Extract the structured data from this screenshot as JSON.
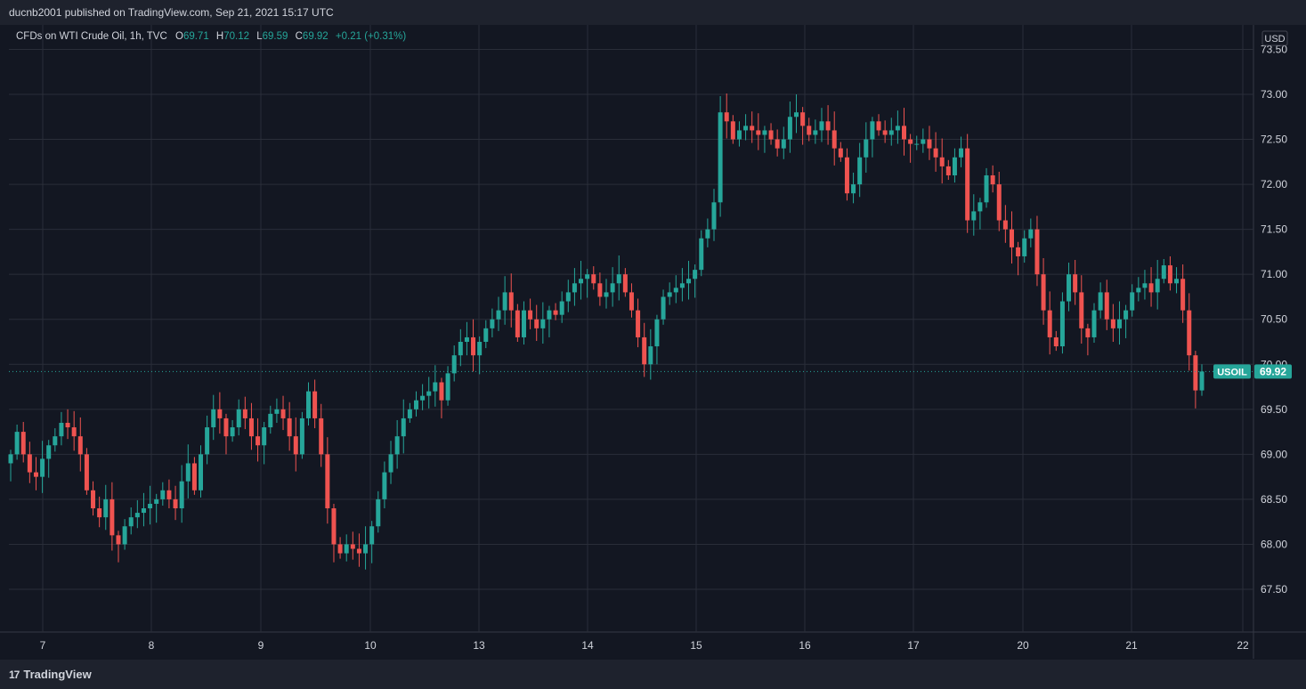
{
  "header": {
    "published": "ducnb2001 published on TradingView.com, Sep 21, 2021 15:17 UTC"
  },
  "legend": {
    "symbol": "CFDs on WTI Crude Oil, 1h, TVC",
    "o_label": "O",
    "o": "69.71",
    "h_label": "H",
    "h": "70.12",
    "l_label": "L",
    "l": "69.59",
    "c_label": "C",
    "c": "69.92",
    "change": "+0.21 (+0.31%)"
  },
  "footer": {
    "brand": "TradingView",
    "logo_glyph": "17"
  },
  "colors": {
    "background": "#131722",
    "panel": "#1e222d",
    "grid": "#2a2e39",
    "up": "#26a69a",
    "down": "#ef5350",
    "text": "#d1d4dc"
  },
  "chart_data": {
    "type": "candlestick",
    "currency": "USD",
    "ylim": [
      67.2,
      73.6
    ],
    "y_ticks": [
      "67.50",
      "68.00",
      "68.50",
      "69.00",
      "69.50",
      "70.00",
      "70.50",
      "71.00",
      "71.50",
      "72.00",
      "72.50",
      "73.00",
      "73.50"
    ],
    "x_ticks": [
      "7",
      "8",
      "9",
      "10",
      "13",
      "14",
      "15",
      "16",
      "17",
      "20",
      "21",
      "22"
    ],
    "last_price": {
      "symbol": "USOIL",
      "value": "69.92"
    },
    "closes": [
      69.0,
      69.25,
      69.0,
      68.8,
      68.75,
      68.95,
      69.1,
      69.2,
      69.35,
      69.3,
      69.2,
      69.0,
      68.6,
      68.4,
      68.3,
      68.5,
      68.1,
      68.0,
      68.2,
      68.3,
      68.35,
      68.4,
      68.45,
      68.5,
      68.6,
      68.5,
      68.4,
      68.7,
      68.9,
      68.6,
      69.0,
      69.3,
      69.5,
      69.4,
      69.2,
      69.3,
      69.5,
      69.4,
      69.2,
      69.1,
      69.3,
      69.45,
      69.5,
      69.4,
      69.2,
      69.0,
      69.4,
      69.7,
      69.4,
      69.0,
      68.4,
      68.0,
      67.9,
      68.0,
      67.95,
      67.9,
      68.0,
      68.2,
      68.5,
      68.8,
      69.0,
      69.2,
      69.4,
      69.5,
      69.6,
      69.65,
      69.7,
      69.8,
      69.6,
      69.9,
      70.1,
      70.25,
      70.3,
      70.1,
      70.25,
      70.4,
      70.5,
      70.6,
      70.8,
      70.6,
      70.3,
      70.6,
      70.5,
      70.4,
      70.5,
      70.6,
      70.55,
      70.7,
      70.8,
      70.9,
      70.95,
      71.0,
      70.9,
      70.75,
      70.8,
      70.9,
      71.0,
      70.8,
      70.6,
      70.3,
      70.0,
      70.2,
      70.5,
      70.75,
      70.8,
      70.85,
      70.9,
      70.95,
      71.05,
      71.4,
      71.5,
      71.8,
      72.8,
      72.7,
      72.5,
      72.6,
      72.65,
      72.6,
      72.55,
      72.6,
      72.5,
      72.4,
      72.5,
      72.75,
      72.8,
      72.65,
      72.55,
      72.6,
      72.7,
      72.6,
      72.4,
      72.3,
      71.9,
      72.0,
      72.3,
      72.5,
      72.7,
      72.6,
      72.55,
      72.6,
      72.65,
      72.5,
      72.45,
      72.45,
      72.5,
      72.4,
      72.3,
      72.2,
      72.1,
      72.3,
      72.4,
      71.6,
      71.7,
      71.8,
      72.1,
      72.0,
      71.6,
      71.5,
      71.3,
      71.2,
      71.4,
      71.5,
      71.0,
      70.6,
      70.3,
      70.2,
      70.7,
      71.0,
      70.8,
      70.4,
      70.3,
      70.6,
      70.8,
      70.5,
      70.4,
      70.5,
      70.6,
      70.8,
      70.85,
      70.9,
      70.8,
      70.95,
      71.1,
      70.9,
      70.95,
      70.6,
      70.1,
      69.71,
      69.92
    ]
  }
}
